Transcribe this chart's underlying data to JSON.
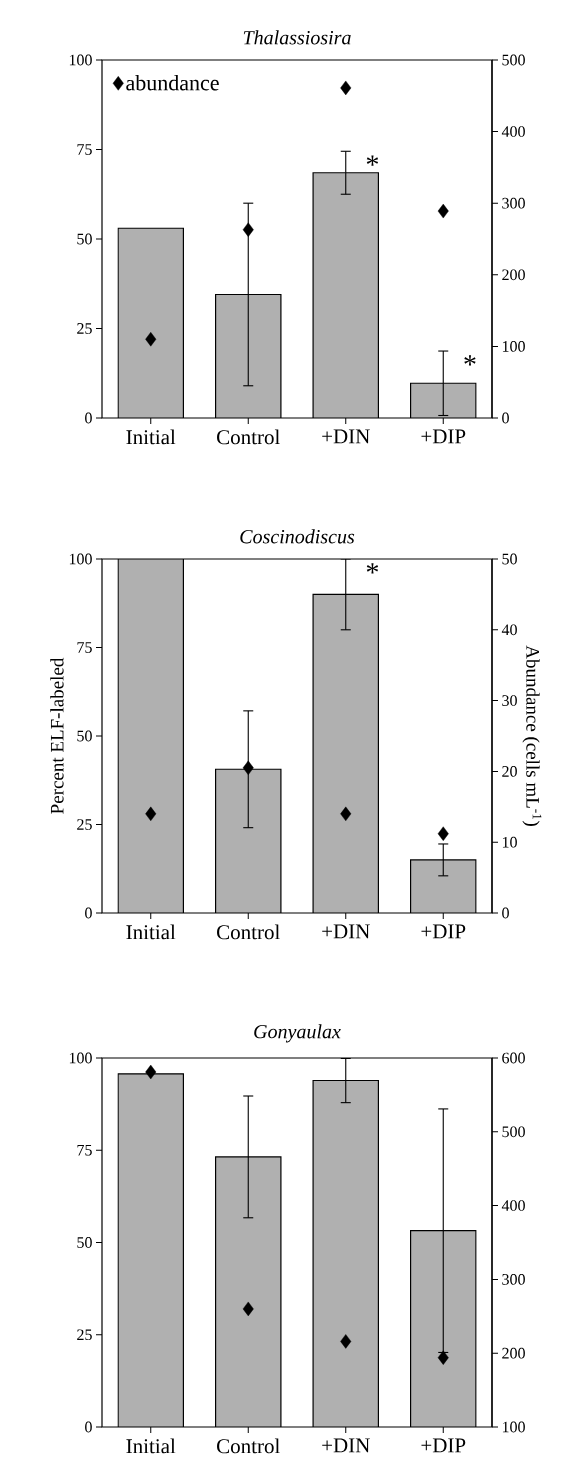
{
  "chart_data": [
    {
      "type": "bar",
      "title": "Thalassiosira",
      "categories": [
        "Initial",
        "Control",
        "+DIN",
        "+DIP"
      ],
      "ylim": [
        0,
        100
      ],
      "yticks": [
        0,
        25,
        50,
        75,
        100
      ],
      "y2lim": [
        0,
        500
      ],
      "y2ticks": [
        0,
        100,
        200,
        300,
        400,
        500
      ],
      "legend": "top left",
      "grid": false,
      "series": [
        {
          "color": "#b0b0b0",
          "values": [
            53,
            34.5,
            68.5,
            9.7
          ],
          "errors": [
            null,
            25.5,
            6,
            9
          ]
        },
        {
          "type": "scatter",
          "name": "abundance",
          "axis": "y2",
          "marker": "diamond",
          "color": "#000000",
          "values": [
            110,
            263,
            461,
            289
          ]
        }
      ],
      "annotations": [
        {
          "text": "*",
          "x": "+DIN",
          "y": 74.5
        },
        {
          "text": "*",
          "x": "+DIP",
          "y": 18.7
        }
      ]
    },
    {
      "type": "bar",
      "title": "Coscinodiscus",
      "ylabel": "Percent ELF-labeled",
      "y2label": "Abundance (cells mL$^{-1}$)",
      "categories": [
        "Initial",
        "Control",
        "+DIN",
        "+DIP"
      ],
      "ylim": [
        0,
        100
      ],
      "yticks": [
        0,
        25,
        50,
        75,
        100
      ],
      "y2lim": [
        0,
        50
      ],
      "y2ticks": [
        0,
        10,
        20,
        30,
        40,
        50
      ],
      "legend": false,
      "series": [
        {
          "color": "#b0b0b0",
          "values": [
            100,
            40.6,
            90,
            15
          ],
          "errors": [
            null,
            16.5,
            10,
            4.5
          ]
        },
        {
          "type": "scatter",
          "axis": "y2",
          "marker": "diamond",
          "color": "#000000",
          "values": [
            14,
            20.5,
            14,
            11.2
          ]
        }
      ],
      "annotations": [
        {
          "text": "*",
          "x": "+DIN",
          "y": 100
        }
      ]
    },
    {
      "type": "bar",
      "title": "Gonyaulax",
      "categories": [
        "Initial",
        "Control",
        "+DIN",
        "+DIP"
      ],
      "ylim": [
        0,
        100
      ],
      "yticks": [
        0,
        25,
        50,
        75,
        100
      ],
      "y2lim": [
        100,
        600
      ],
      "y2ticks": [
        100,
        200,
        300,
        400,
        500,
        600
      ],
      "legend": false,
      "series": [
        {
          "color": "#b0b0b0",
          "values": [
            95.7,
            73.2,
            93.9,
            53.2
          ],
          "errors": [
            null,
            16.5,
            6,
            33
          ]
        },
        {
          "type": "scatter",
          "axis": "y2",
          "marker": "diamond",
          "color": "#000000",
          "values": [
            581,
            260,
            216,
            194
          ]
        }
      ]
    }
  ]
}
